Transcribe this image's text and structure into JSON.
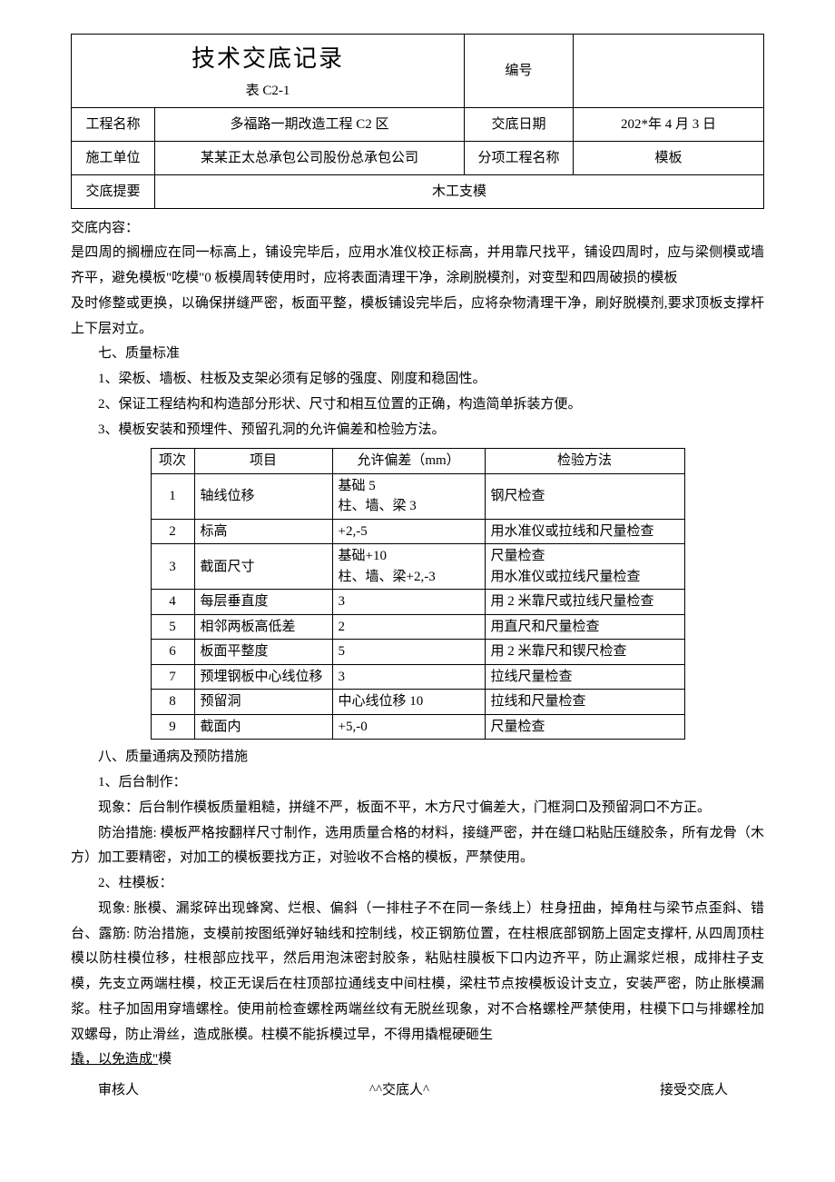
{
  "header": {
    "doc_title": "技术交底记录",
    "table_code": "表 C2-1",
    "serial_label": "编号",
    "serial_value": "",
    "rows": [
      {
        "l1": "工程名称",
        "v1": "多福路一期改造工程 C2 区",
        "l2": "交底日期",
        "v2": "202*年 4 月 3 日"
      },
      {
        "l1": "施工单位",
        "v1": "某某正太总承包公司股份总承包公司",
        "l2": "分项工程名称",
        "v2": "模板"
      }
    ],
    "summary_label": "交底提要",
    "summary_value": "木工支模"
  },
  "body": {
    "content_label": "交底内容：",
    "p1": "是四周的搁栅应在同一标高上，铺设完毕后，应用水准仪校正标高，并用靠尺找平，铺设四周时，应与梁侧模或墙齐平，避免模板\"吃模\"0 板模周转使用时，应将表面清理干净，涂刷脱模剂，对变型和四周破损的模板",
    "p2": "及时修整或更换，以确保拼缝严密，板面平整，模板铺设完毕后，应将杂物清理干净，刷好脱模剂,要求顶板支撑杆上下层对立。",
    "sec7_title": "七、质量标准",
    "sec7_items": [
      "1、梁板、墙板、柱板及支架必须有足够的强度、刚度和稳固性。",
      "2、保证工程结构和构造部分形状、尺寸和相互位置的正确，构造简单拆装方便。",
      "3、模板安装和预埋件、预留孔洞的允许偏差和检验方法。"
    ],
    "table": {
      "headers": [
        "项次",
        "项目",
        "允许偏差（mm）",
        "检验方法"
      ],
      "rows": [
        {
          "no": "1",
          "item": "轴线位移",
          "tol": "基础 5\n柱、墙、梁 3",
          "method": "钢尺检查"
        },
        {
          "no": "2",
          "item": "标高",
          "tol": "+2,-5",
          "method": "用水准仪或拉线和尺量检查"
        },
        {
          "no": "3",
          "item": "截面尺寸",
          "tol": "基础+10\n柱、墙、梁+2,-3",
          "method": "尺量检查\n用水准仪或拉线尺量检查"
        },
        {
          "no": "4",
          "item": "每层垂直度",
          "tol": "3",
          "method": "用 2 米靠尺或拉线尺量检查"
        },
        {
          "no": "5",
          "item": "相邻两板高低差",
          "tol": "2",
          "method": "用直尺和尺量检查"
        },
        {
          "no": "6",
          "item": "板面平整度",
          "tol": "5",
          "method": "用 2 米靠尺和锲尺检查"
        },
        {
          "no": "7",
          "item": "预埋钢板中心线位移",
          "tol": "3",
          "method": "拉线尺量检查"
        },
        {
          "no": "8",
          "item": "预留洞",
          "tol": "中心线位移 10",
          "method": "拉线和尺量检查"
        },
        {
          "no": "9",
          "item": "截面内",
          "tol": "+5,-0",
          "method": "尺量检查"
        }
      ]
    },
    "sec8_title": "八、质量通病及预防措施",
    "s8_1_title": "1、后台制作：",
    "s8_1_p1": "现象：后台制作模板质量粗糙，拼缝不严，板面不平，木方尺寸偏差大，门框洞口及预留洞口不方正。",
    "s8_1_p2": "防治措施: 模板严格按翻样尺寸制作，选用质量合格的材料，接缝严密，并在缝口粘贴压缝胶条，所有龙骨（木方）加工要精密，对加工的模板要找方正，对验收不合格的模板，严禁使用。",
    "s8_2_title": "2、柱模板：",
    "s8_2_p1": "现象: 胀模、漏浆碎出现蜂窝、烂根、偏斜（一排柱子不在同一条线上）柱身扭曲，掉角柱与梁节点歪斜、错台、露筋: 防治措施，支模前按图纸弹好轴线和控制线，校正钢筋位置，在柱根底部钢筋上固定支撑杆, 从四周顶柱模以防柱模位移，柱根部应找平，然后用泡沫密封胶条，粘贴柱膜板下口内边齐平，防止漏浆烂根，成排柱子支模，先支立两端柱模，校正无误后在柱顶部拉通线支中间柱模，梁柱节点按模板设计支立，安装严密，防止胀模漏浆。柱子加固用穿墙螺栓。使用前检查螺栓两端丝纹有无脱丝现象，对不合格螺栓严禁使用，柱模下口与排螺栓加双螺母，防止滑丝，造成胀模。柱模不能拆模过早，不得用撬棍硬砸生",
    "s8_2_tail_u": "撬，以免造成\"",
    "s8_2_tail": "模"
  },
  "sign": {
    "a": "审核人",
    "b": "^^交底人^",
    "c": "接受交底人"
  }
}
